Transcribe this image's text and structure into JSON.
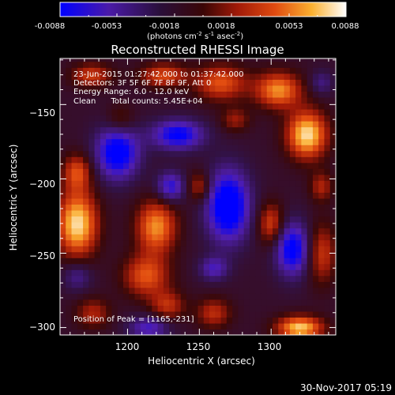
{
  "colorbar": {
    "ticks": [
      "-0.0088",
      "-0.0053",
      "-0.0018",
      "0.0018",
      "0.0053",
      "0.0088"
    ],
    "units_label": "(photons cm",
    "units_exp1": "-2",
    "units_mid1": " s",
    "units_exp2": "-1",
    "units_mid2": " asec",
    "units_exp3": "-2",
    "units_end": ")",
    "colors": [
      "#0000ff",
      "#5a1aa0",
      "#2a0f3a",
      "#5a0a08",
      "#c43010",
      "#f57410",
      "#fde060",
      "#ffffff"
    ]
  },
  "chart_data": {
    "type": "heatmap",
    "title": "Reconstructed RHESSI Image",
    "xlabel": "Heliocentric X (arcsec)",
    "ylabel": "Heliocentric Y (arcsec)",
    "xlim": [
      1153,
      1345
    ],
    "ylim": [
      -305,
      -119
    ],
    "x_ticks": [
      1200,
      1250,
      1300
    ],
    "y_ticks": [
      -150,
      -200,
      -250,
      -300
    ],
    "color_range": [
      -0.0088,
      0.0088
    ],
    "peak": [
      1165,
      -231
    ],
    "annotations": [
      "23-Jun-2015 01:27:42.000 to 01:37:42.000",
      "Detectors: 3F 5F 6F 7F 8F 9F, Att 0",
      "Energy Range: 6.0 - 12.0 keV",
      "Clean      Total counts: 5.45E+04"
    ],
    "peak_label": "Position of Peak = [1165,-231]"
  },
  "timestamp": "30-Nov-2017 05:19"
}
